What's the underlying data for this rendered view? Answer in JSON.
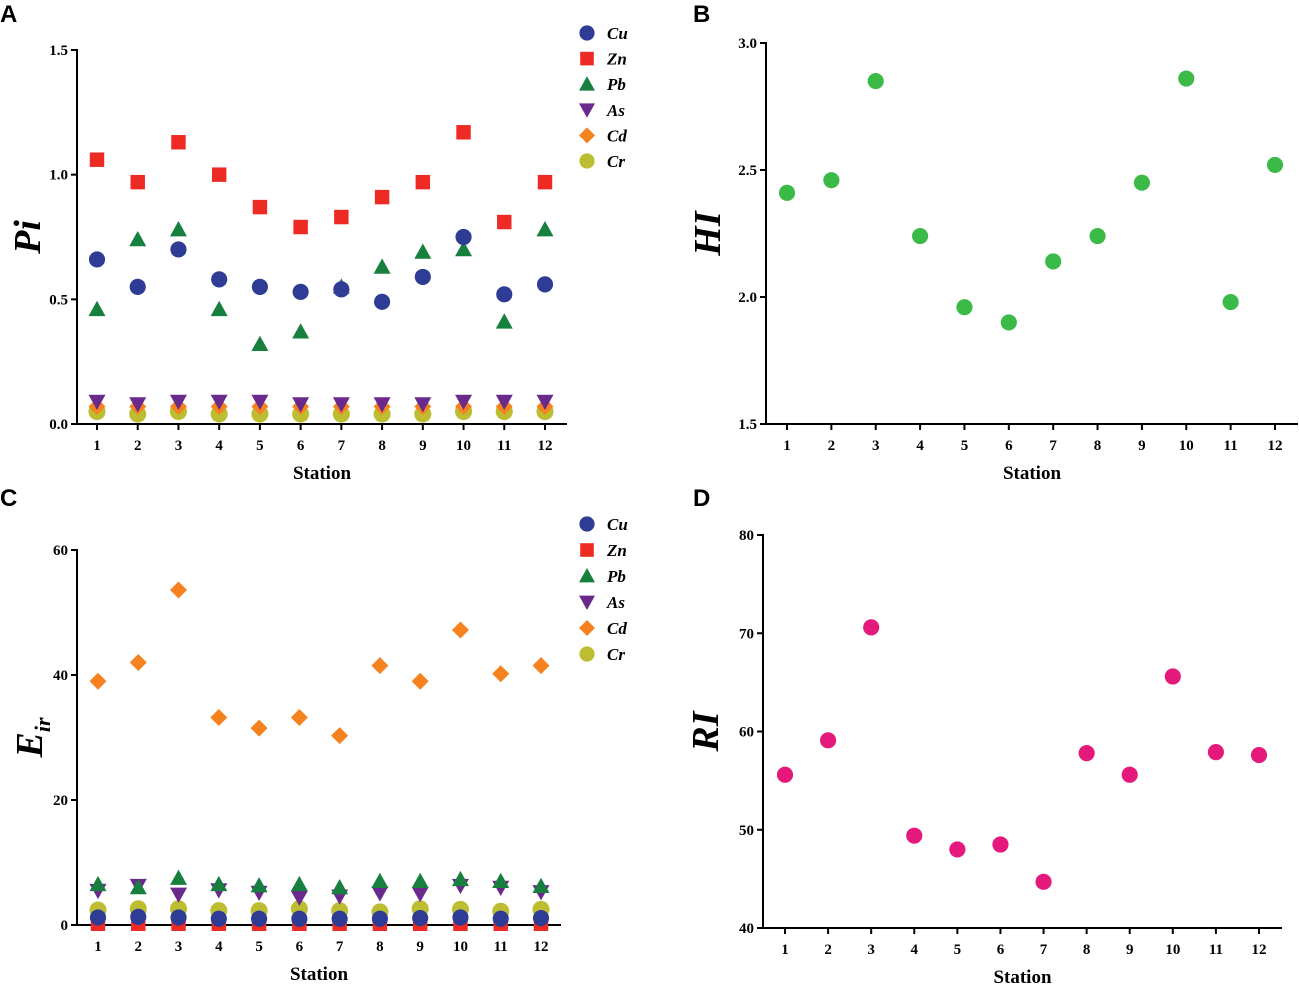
{
  "figure": {
    "colors": {
      "Cu": "#2e3c96",
      "Zn": "#ee2a24",
      "Pb": "#17803e",
      "As": "#6a2a8c",
      "Cd": "#f5821f",
      "Cr": "#bdbd32",
      "HI": "#3cba48",
      "RI": "#e5197c"
    }
  },
  "chart_data": [
    {
      "id": "A",
      "panel_label": "A",
      "type": "scatter",
      "xlabel": "Station",
      "ylabel": "Pi",
      "x": [
        1,
        2,
        3,
        4,
        5,
        6,
        7,
        8,
        9,
        10,
        11,
        12
      ],
      "ylim": [
        0,
        1.5
      ],
      "yticks": [
        0,
        0.5,
        1.0,
        1.5
      ],
      "ytick_labels": [
        "0.0",
        "0.5",
        "1.0",
        "1.5"
      ],
      "legend_position": "top-right",
      "series": [
        {
          "name": "Cu",
          "marker": "circle",
          "values": [
            0.66,
            0.55,
            0.7,
            0.58,
            0.55,
            0.53,
            0.54,
            0.49,
            0.59,
            0.75,
            0.52,
            0.56
          ]
        },
        {
          "name": "Zn",
          "marker": "square",
          "values": [
            1.06,
            0.97,
            1.13,
            1.0,
            0.87,
            0.79,
            0.83,
            0.91,
            0.97,
            1.17,
            0.81,
            0.97
          ]
        },
        {
          "name": "Pb",
          "marker": "triangle-up",
          "values": [
            0.46,
            0.74,
            0.78,
            0.46,
            0.32,
            0.37,
            0.55,
            0.63,
            0.69,
            0.7,
            0.41,
            0.78
          ]
        },
        {
          "name": "As",
          "marker": "triangle-down",
          "values": [
            0.09,
            0.08,
            0.09,
            0.09,
            0.09,
            0.08,
            0.08,
            0.08,
            0.08,
            0.09,
            0.09,
            0.09
          ]
        },
        {
          "name": "Cd",
          "marker": "diamond",
          "values": [
            0.07,
            0.07,
            0.07,
            0.07,
            0.07,
            0.07,
            0.07,
            0.07,
            0.07,
            0.07,
            0.07,
            0.07
          ]
        },
        {
          "name": "Cr",
          "marker": "circle",
          "values": [
            0.05,
            0.04,
            0.05,
            0.04,
            0.04,
            0.04,
            0.04,
            0.04,
            0.04,
            0.05,
            0.05,
            0.05
          ]
        }
      ]
    },
    {
      "id": "B",
      "panel_label": "B",
      "type": "scatter",
      "xlabel": "Station",
      "ylabel": "HI",
      "x": [
        1,
        2,
        3,
        4,
        5,
        6,
        7,
        8,
        9,
        10,
        11,
        12
      ],
      "ylim": [
        1.5,
        3.0
      ],
      "yticks": [
        1.5,
        2.0,
        2.5,
        3.0
      ],
      "ytick_labels": [
        "1.5",
        "2.0",
        "2.5",
        "3.0"
      ],
      "series": [
        {
          "name": "HI",
          "marker": "circle",
          "values": [
            2.41,
            2.46,
            2.85,
            2.24,
            1.96,
            1.9,
            2.14,
            2.24,
            2.45,
            2.86,
            1.98,
            2.52
          ]
        }
      ]
    },
    {
      "id": "C",
      "panel_label": "C",
      "type": "scatter",
      "xlabel": "Station",
      "ylabel": "E",
      "ylabel_sub": "ir",
      "x": [
        1,
        2,
        3,
        4,
        5,
        6,
        7,
        8,
        9,
        10,
        11,
        12
      ],
      "ylim": [
        0,
        60
      ],
      "yticks": [
        0,
        20,
        40,
        60
      ],
      "ytick_labels": [
        "0",
        "20",
        "40",
        "60"
      ],
      "legend_position": "top-right",
      "series": [
        {
          "name": "Cu",
          "marker": "circle",
          "values": [
            1.2,
            1.3,
            1.2,
            1.0,
            1.0,
            1.0,
            1.0,
            1.0,
            1.1,
            1.2,
            1.0,
            1.1
          ]
        },
        {
          "name": "Zn",
          "marker": "square",
          "values": [
            0.2,
            0.2,
            0.2,
            0.2,
            0.2,
            0.2,
            0.2,
            0.2,
            0.2,
            0.2,
            0.2,
            0.2
          ]
        },
        {
          "name": "Pb",
          "marker": "triangle-up",
          "values": [
            6.5,
            6.0,
            7.5,
            6.5,
            6.3,
            6.5,
            6.0,
            7.0,
            7.0,
            7.3,
            7.0,
            6.2
          ]
        },
        {
          "name": "As",
          "marker": "triangle-down",
          "values": [
            5.5,
            6.3,
            4.9,
            5.6,
            5.2,
            4.4,
            4.6,
            5.1,
            5.0,
            6.3,
            6.0,
            5.3
          ]
        },
        {
          "name": "Cd",
          "marker": "diamond",
          "values": [
            39.0,
            42.0,
            53.6,
            33.2,
            31.5,
            33.2,
            30.3,
            41.5,
            39.0,
            47.2,
            40.2,
            41.5
          ]
        },
        {
          "name": "Cr",
          "marker": "circle",
          "values": [
            2.4,
            2.6,
            2.6,
            2.3,
            2.3,
            2.6,
            2.3,
            2.1,
            2.6,
            2.5,
            2.2,
            2.5
          ]
        }
      ]
    },
    {
      "id": "D",
      "panel_label": "D",
      "type": "scatter",
      "xlabel": "Station",
      "ylabel": "RI",
      "x": [
        1,
        2,
        3,
        4,
        5,
        6,
        7,
        8,
        9,
        10,
        11,
        12
      ],
      "ylim": [
        40,
        80
      ],
      "yticks": [
        40,
        50,
        60,
        70,
        80
      ],
      "ytick_labels": [
        "40",
        "50",
        "60",
        "70",
        "80"
      ],
      "series": [
        {
          "name": "RI",
          "marker": "circle",
          "values": [
            55.6,
            59.1,
            70.6,
            49.4,
            48.0,
            48.5,
            44.7,
            57.8,
            55.6,
            65.6,
            57.9,
            57.6
          ]
        }
      ]
    }
  ]
}
